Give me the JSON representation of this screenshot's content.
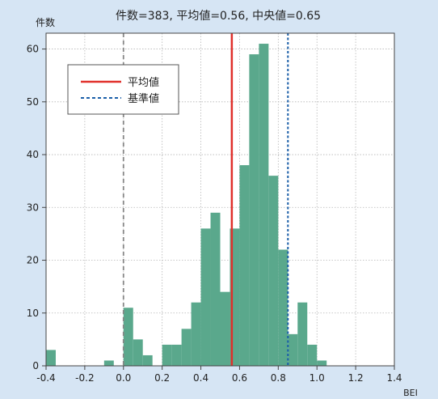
{
  "chart_data": {
    "type": "bar",
    "title": "件数=383, 平均値=0.56, 中央値=0.65",
    "xlabel": "BEI",
    "ylabel": "件数",
    "xlim": [
      -0.4,
      1.4
    ],
    "ylim": [
      0,
      63
    ],
    "xticks": [
      "-0.4",
      "-0.2",
      "0.0",
      "0.2",
      "0.4",
      "0.6",
      "0.8",
      "1.0",
      "1.2",
      "1.4"
    ],
    "yticks": [
      "0",
      "10",
      "20",
      "30",
      "40",
      "50",
      "60"
    ],
    "bin_width": 0.05,
    "bins": [
      {
        "x0": -0.4,
        "count": 3
      },
      {
        "x0": -0.1,
        "count": 1
      },
      {
        "x0": 0.0,
        "count": 11
      },
      {
        "x0": 0.05,
        "count": 5
      },
      {
        "x0": 0.1,
        "count": 2
      },
      {
        "x0": 0.2,
        "count": 4
      },
      {
        "x0": 0.25,
        "count": 4
      },
      {
        "x0": 0.3,
        "count": 7
      },
      {
        "x0": 0.35,
        "count": 12
      },
      {
        "x0": 0.4,
        "count": 26
      },
      {
        "x0": 0.45,
        "count": 29
      },
      {
        "x0": 0.5,
        "count": 14
      },
      {
        "x0": 0.55,
        "count": 26
      },
      {
        "x0": 0.6,
        "count": 38
      },
      {
        "x0": 0.65,
        "count": 59
      },
      {
        "x0": 0.7,
        "count": 61
      },
      {
        "x0": 0.75,
        "count": 36
      },
      {
        "x0": 0.8,
        "count": 22
      },
      {
        "x0": 0.85,
        "count": 6
      },
      {
        "x0": 0.9,
        "count": 12
      },
      {
        "x0": 0.95,
        "count": 4
      },
      {
        "x0": 1.0,
        "count": 1
      }
    ],
    "reference_lines": [
      {
        "value": 0.0,
        "style": "dashed",
        "color": "#888888"
      },
      {
        "value": 0.56,
        "style": "solid",
        "color": "#e0302b",
        "legend": "平均値"
      },
      {
        "value": 0.85,
        "style": "dotted",
        "color": "#1a5ea8",
        "legend": "基準値"
      }
    ],
    "colors": {
      "background": "#d6e5f4",
      "plot_bg": "#ffffff",
      "bar": "#5aa88c"
    },
    "legend_position": "upper-left",
    "grid": true
  }
}
